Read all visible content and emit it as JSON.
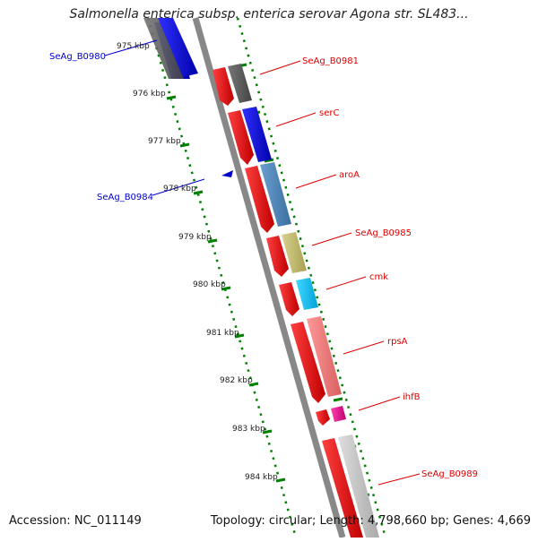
{
  "title": "Salmonella enterica subsp. enterica serovar Agona str. SL483...",
  "footer": {
    "accession": "Accession: NC_011149",
    "stats": "Topology: circular; Length: 4,798,660 bp; Genes: 4,669"
  },
  "colors": {
    "reverse_strand_label": "#0000cc",
    "forward_strand_label": "#dd0000",
    "tick_marks": "#008000",
    "backbone": "#888888"
  },
  "ruler": {
    "unit": "kbp",
    "ticks": [
      "975 kbp",
      "976 kbp",
      "977 kbp",
      "978 kbp",
      "979 kbp",
      "980 kbp",
      "981 kbp",
      "982 kbp",
      "983 kbp",
      "984 kbp"
    ]
  },
  "genes": [
    {
      "name": "SeAg_B0980",
      "strand": "reverse",
      "color": "#0000ff",
      "icon": "gene-block"
    },
    {
      "name": "SeAg_B0981",
      "strand": "forward",
      "color": "#666666",
      "icon": "gene-block"
    },
    {
      "name": "serC",
      "strand": "forward",
      "color": "#0000cc",
      "icon": "gene-block"
    },
    {
      "name": "SeAg_B0984",
      "strand": "reverse",
      "color": "#0000cc",
      "icon": "arrow-marker"
    },
    {
      "name": "aroA",
      "strand": "forward",
      "color": "#4682b4",
      "icon": "gene-block"
    },
    {
      "name": "SeAg_B0985",
      "strand": "forward",
      "color": "#bdb76b",
      "icon": "gene-block"
    },
    {
      "name": "cmk",
      "strand": "forward",
      "color": "#00bfff",
      "icon": "gene-block"
    },
    {
      "name": "rpsA",
      "strand": "forward",
      "color": "#f08080",
      "icon": "gene-block"
    },
    {
      "name": "ihfB",
      "strand": "forward",
      "color": "#ff1493",
      "icon": "gene-block"
    },
    {
      "name": "SeAg_B0989",
      "strand": "forward",
      "color": "#c0c0c0",
      "icon": "gene-block"
    }
  ]
}
